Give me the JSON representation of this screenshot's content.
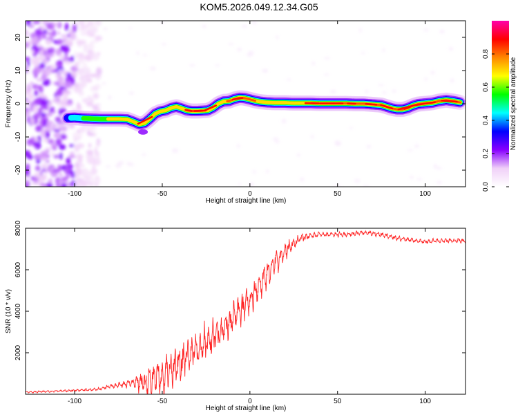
{
  "title": "KOM5.2026.049.12.34.G05",
  "chart_data": [
    {
      "type": "heatmap",
      "name": "spectrogram",
      "xlabel": "Height of straight line (km)",
      "ylabel": "Frequency (Hz)",
      "xlim": [
        -128,
        123
      ],
      "ylim": [
        -25,
        25
      ],
      "xticks": [
        -100,
        -50,
        0,
        50,
        100
      ],
      "yticks": [
        -20,
        -10,
        0,
        10,
        20
      ],
      "xtick_labels": [
        "-100",
        "-50",
        "0",
        "50",
        "100"
      ],
      "ytick_labels": [
        "-20",
        "-10",
        "0",
        "10",
        "20"
      ],
      "ridge": {
        "x": [
          -104,
          -100,
          -95,
          -90,
          -85,
          -80,
          -75,
          -70,
          -66,
          -63,
          -60,
          -57,
          -54,
          -51,
          -48,
          -45,
          -42,
          -39,
          -36,
          -33,
          -30,
          -27,
          -24,
          -21,
          -18,
          -15,
          -12,
          -9,
          -6,
          -3,
          0,
          3,
          6,
          10,
          15,
          20,
          25,
          30,
          35,
          40,
          45,
          50,
          55,
          60,
          65,
          70,
          75,
          78,
          81,
          84,
          87,
          90,
          93,
          96,
          100,
          104,
          108,
          112,
          116,
          120
        ],
        "freq": [
          -4.3,
          -4.2,
          -4.4,
          -4.5,
          -4.6,
          -4.6,
          -4.6,
          -4.7,
          -5.5,
          -6.2,
          -5.8,
          -4.5,
          -3,
          -2.3,
          -2,
          -1.3,
          -0.9,
          -1.4,
          -2,
          -2.2,
          -2.2,
          -2.1,
          -2,
          -1.2,
          0,
          0.7,
          0.8,
          1.4,
          1.8,
          1.7,
          1.3,
          0.9,
          0.6,
          0.4,
          0.3,
          0.3,
          0.2,
          0.2,
          0.2,
          0.1,
          0.1,
          0.1,
          0.1,
          0,
          0,
          -0.2,
          -0.4,
          -0.9,
          -1.4,
          -1.7,
          -1.7,
          -1.3,
          -0.6,
          -0.1,
          0.1,
          0.3,
          0.8,
          1.1,
          0.8,
          0.4
        ],
        "amplitude": [
          0.4,
          0.45,
          0.55,
          0.6,
          0.65,
          0.7,
          0.7,
          0.7,
          0.75,
          0.8,
          0.75,
          0.7,
          0.72,
          0.74,
          0.7,
          0.72,
          0.74,
          0.75,
          0.8,
          0.82,
          0.82,
          0.8,
          0.75,
          0.7,
          0.7,
          0.75,
          0.85,
          0.92,
          0.95,
          0.9,
          0.85,
          0.8,
          0.75,
          0.72,
          0.7,
          0.72,
          0.75,
          0.78,
          0.8,
          0.85,
          0.9,
          0.9,
          0.85,
          0.8,
          0.8,
          0.8,
          0.82,
          0.85,
          0.9,
          0.92,
          0.9,
          0.85,
          0.8,
          0.82,
          0.85,
          0.9,
          0.92,
          0.95,
          0.92,
          0.9
        ]
      },
      "noise_region_x": [
        -128,
        -90
      ]
    },
    {
      "type": "colorbar",
      "name": "amplitude-colorbar",
      "label": "Normalized spectral amplitude",
      "range": [
        0,
        1
      ],
      "ticks": [
        0,
        0.2,
        0.4,
        0.6,
        0.8
      ],
      "tick_labels": [
        "0.0",
        "0.2",
        "0.4",
        "0.6",
        "0.8"
      ],
      "colormap": [
        "#ffffff",
        "#f0d0f8",
        "#8800ff",
        "#0000ff",
        "#00ffff",
        "#00ff00",
        "#ffff00",
        "#ff8800",
        "#ff0000",
        "#ff00aa"
      ]
    },
    {
      "type": "line",
      "name": "snr-trace",
      "xlabel": "Height of straight line (km)",
      "ylabel": "SNR (10 * v/v)",
      "xlim": [
        -128,
        123
      ],
      "ylim": [
        0,
        8000
      ],
      "xticks": [
        -100,
        -50,
        0,
        50,
        100
      ],
      "yticks": [
        2000,
        4000,
        6000,
        8000
      ],
      "xtick_labels": [
        "-100",
        "-50",
        "0",
        "50",
        "100"
      ],
      "ytick_labels": [
        "2000",
        "4000",
        "6000",
        "8000"
      ],
      "color": "#ff2222",
      "envelope": {
        "x": [
          -128,
          -110,
          -95,
          -85,
          -80,
          -75,
          -70,
          -65,
          -60,
          -55,
          -50,
          -45,
          -40,
          -35,
          -30,
          -25,
          -20,
          -15,
          -10,
          -5,
          0,
          5,
          10,
          15,
          20,
          25,
          30,
          35,
          40,
          45,
          50,
          55,
          60,
          65,
          70,
          75,
          80,
          85,
          90,
          95,
          100,
          105,
          110,
          115,
          123
        ],
        "base": [
          100,
          150,
          200,
          250,
          400,
          450,
          500,
          550,
          500,
          700,
          800,
          1200,
          1500,
          1900,
          2200,
          2500,
          2800,
          3200,
          3600,
          4100,
          4600,
          5200,
          5800,
          6400,
          6900,
          7300,
          7550,
          7650,
          7700,
          7700,
          7700,
          7700,
          7750,
          7800,
          7750,
          7700,
          7600,
          7500,
          7450,
          7400,
          7350,
          7400,
          7400,
          7400,
          7400
        ],
        "osc_amp": [
          50,
          50,
          60,
          80,
          120,
          150,
          200,
          350,
          700,
          900,
          1000,
          1000,
          1000,
          950,
          900,
          900,
          850,
          850,
          800,
          800,
          750,
          750,
          700,
          600,
          500,
          300,
          200,
          150,
          120,
          120,
          120,
          120,
          120,
          120,
          120,
          120,
          120,
          120,
          120,
          100,
          100,
          100,
          100,
          100,
          100
        ]
      }
    }
  ]
}
